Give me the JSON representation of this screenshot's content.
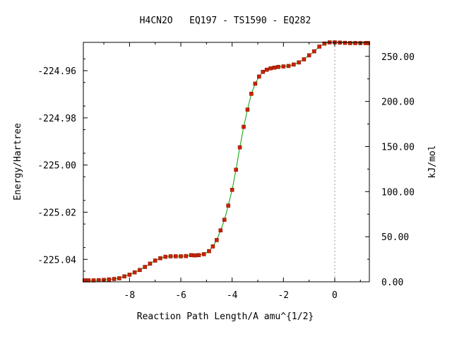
{
  "chart_data": {
    "type": "line",
    "title": "H4CN2O   EQ197 - TS1590 - EQ282",
    "xlabel": "Reaction Path Length/A amu^{1/2}",
    "ylabel": "Energy/Hartree",
    "y2label": "kJ/mol",
    "xlim": [
      -9.8,
      1.35
    ],
    "ylim": [
      -225.0495,
      -224.948
    ],
    "y2lim": [
      0,
      265.5
    ],
    "grid": false,
    "legend": "none",
    "x_ticks": [
      -8,
      -6,
      -4,
      -2,
      0
    ],
    "x_tick_labels": [
      "-8",
      "-6",
      "-4",
      "-2",
      "0"
    ],
    "y_ticks": [
      -224.96,
      -224.98,
      -225.0,
      -225.02,
      -225.04
    ],
    "y_tick_labels": [
      "-224.96",
      "-224.98",
      "-225.00",
      "-225.02",
      "-225.04"
    ],
    "y2_ticks": [
      0,
      50,
      100,
      150,
      200,
      250
    ],
    "y2_tick_labels": [
      "0.00",
      "50.00",
      "100.00",
      "150.00",
      "200.00",
      "250.00"
    ],
    "ts_marker_x": 0,
    "colors": {
      "line": "#00a000",
      "marker": "#cc2200",
      "marker_edge": "#8a1500",
      "ts_line": "#999999"
    },
    "series": [
      {
        "x": [
          -9.75,
          -9.6,
          -9.4,
          -9.2,
          -9.0,
          -8.8,
          -8.6,
          -8.4,
          -8.2,
          -8.0,
          -7.8,
          -7.6,
          -7.4,
          -7.2,
          -7.0,
          -6.8,
          -6.6,
          -6.4,
          -6.2,
          -6.0,
          -5.8,
          -5.6,
          -5.45,
          -5.3,
          -5.1,
          -4.9,
          -4.75,
          -4.6,
          -4.45,
          -4.3,
          -4.15,
          -4.0,
          -3.85,
          -3.7,
          -3.55,
          -3.4,
          -3.25,
          -3.1,
          -2.95,
          -2.8,
          -2.65,
          -2.5,
          -2.35,
          -2.2,
          -2.0,
          -1.8,
          -1.6,
          -1.4,
          -1.2,
          -1.0,
          -0.8,
          -0.6,
          -0.4,
          -0.2,
          0.0,
          0.2,
          0.4,
          0.6,
          0.8,
          1.0,
          1.2,
          1.3
        ],
        "y": [
          -225.0489,
          -225.0489,
          -225.0489,
          -225.0488,
          -225.0487,
          -225.0485,
          -225.0483,
          -225.048,
          -225.0472,
          -225.0465,
          -225.0455,
          -225.0445,
          -225.0432,
          -225.0418,
          -225.0405,
          -225.0395,
          -225.0389,
          -225.0387,
          -225.0387,
          -225.0387,
          -225.0386,
          -225.0382,
          -225.0383,
          -225.0382,
          -225.0378,
          -225.0365,
          -225.0345,
          -225.0318,
          -225.0277,
          -225.0232,
          -225.0172,
          -225.0105,
          -225.002,
          -224.9925,
          -224.9838,
          -224.9765,
          -224.9698,
          -224.9655,
          -224.9625,
          -224.9605,
          -224.9596,
          -224.959,
          -224.9587,
          -224.9584,
          -224.9582,
          -224.958,
          -224.9574,
          -224.9565,
          -224.9552,
          -224.9535,
          -224.9518,
          -224.9498,
          -224.9485,
          -224.948,
          -224.948,
          -224.9481,
          -224.9482,
          -224.9483,
          -224.9483,
          -224.9483,
          -224.9483,
          -224.9483
        ]
      }
    ]
  }
}
